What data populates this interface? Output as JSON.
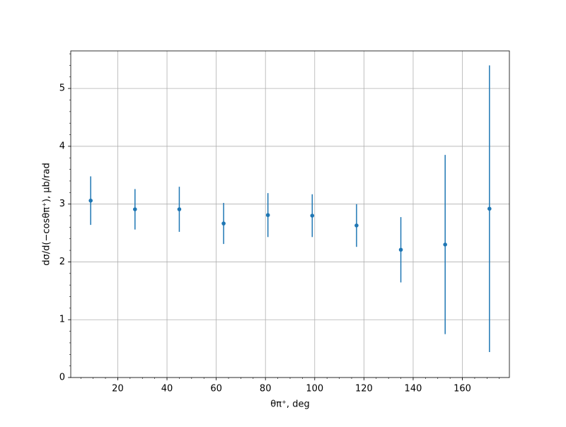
{
  "chart_data": {
    "type": "errorbar",
    "xlabel": "θπ⁺, deg",
    "ylabel": "dσ/d(−cosθπ⁺), μb/rad",
    "x": [
      9,
      27,
      45,
      63,
      81,
      99,
      117,
      135,
      153,
      171
    ],
    "series": [
      {
        "color": "#1f77b4",
        "values": [
          3.06,
          2.91,
          2.91,
          2.665,
          2.81,
          2.8,
          2.63,
          2.21,
          2.3,
          2.92
        ],
        "errors": [
          0.42,
          0.35,
          0.39,
          0.355,
          0.38,
          0.37,
          0.37,
          0.565,
          1.55,
          2.48
        ]
      }
    ],
    "xlim": [
      0.9,
      179.1
    ],
    "ylim": [
      0,
      5.65
    ],
    "xticks": [
      20,
      40,
      60,
      80,
      100,
      120,
      140,
      160
    ],
    "yticks": [
      0,
      1,
      2,
      3,
      4,
      5
    ],
    "xminor_step": 5,
    "yminor_step": 0.2,
    "grid": true
  }
}
